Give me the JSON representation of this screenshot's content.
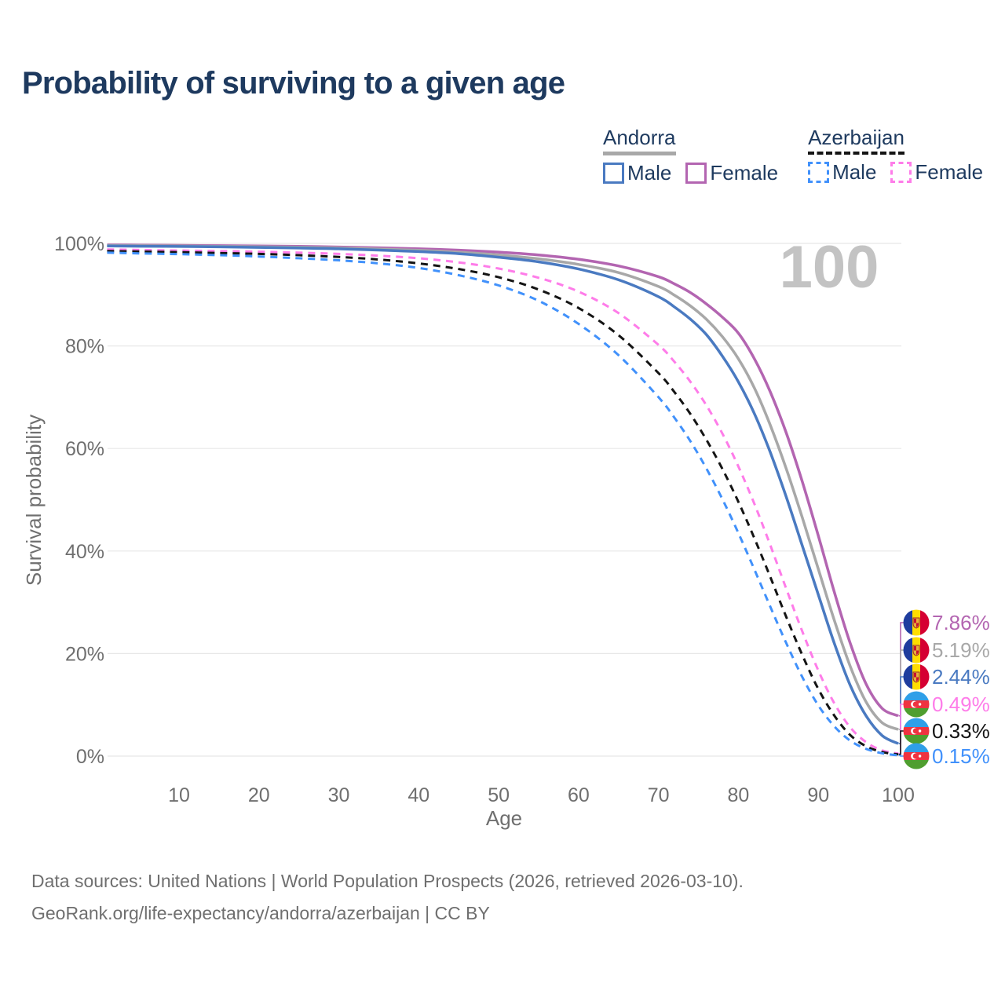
{
  "title": "Probability of surviving to a given age",
  "watermark_age": "100",
  "legend": {
    "groups": [
      {
        "country": "Andorra",
        "line_style": "solid",
        "line_color": "#a8a8a8",
        "items": [
          {
            "label": "Male",
            "color": "#4a7ac1",
            "dashed": false
          },
          {
            "label": "Female",
            "color": "#b365b1",
            "dashed": false
          }
        ]
      },
      {
        "country": "Azerbaijan",
        "line_style": "dashed",
        "line_color": "#141414",
        "items": [
          {
            "label": "Male",
            "color": "#4191fb",
            "dashed": true
          },
          {
            "label": "Female",
            "color": "#fe7ce9",
            "dashed": true
          }
        ]
      }
    ]
  },
  "axes": {
    "x_title": "Age",
    "y_title": "Survival probability",
    "x_ticks": [
      "10",
      "20",
      "30",
      "40",
      "50",
      "60",
      "70",
      "80",
      "90",
      "100"
    ],
    "x_tick_values": [
      10,
      20,
      30,
      40,
      50,
      60,
      70,
      80,
      90,
      100
    ],
    "y_ticks": [
      "100%",
      "80%",
      "60%",
      "40%",
      "20%",
      "0%"
    ],
    "y_tick_values": [
      100,
      80,
      60,
      40,
      20,
      0
    ]
  },
  "chart_data": {
    "type": "line",
    "title": "Probability of surviving to a given age",
    "xlabel": "Age",
    "ylabel": "Survival probability",
    "xlim": [
      1,
      100
    ],
    "ylim": [
      0,
      100
    ],
    "grid": "horizontal",
    "legend_position": "top-right",
    "hover_age": 100,
    "x": [
      1,
      5,
      10,
      15,
      20,
      25,
      30,
      35,
      40,
      45,
      50,
      55,
      60,
      65,
      70,
      72,
      74,
      76,
      78,
      80,
      82,
      84,
      86,
      88,
      90,
      92,
      94,
      96,
      98,
      100
    ],
    "series": [
      {
        "id": "andorra-female",
        "name": "Andorra Female",
        "country": "Andorra",
        "sex": "Female",
        "color": "#b365b1",
        "dashed": false,
        "flag": "andorra",
        "end_label": "7.86%",
        "end_value": 7.86,
        "values": [
          99.7,
          99.66,
          99.62,
          99.56,
          99.5,
          99.42,
          99.3,
          99.14,
          98.95,
          98.68,
          98.3,
          97.75,
          96.9,
          95.6,
          93.5,
          92.1,
          90.4,
          88.2,
          85.6,
          82.5,
          77.5,
          71.0,
          63.0,
          53.5,
          43.0,
          32.0,
          22.0,
          14.0,
          9.3,
          7.86
        ]
      },
      {
        "id": "andorra-both",
        "name": "Andorra",
        "country": "Andorra",
        "sex": "Both",
        "color": "#a8a8a8",
        "dashed": false,
        "flag": "andorra",
        "end_label": "5.19%",
        "end_value": 5.19,
        "values": [
          99.6,
          99.56,
          99.5,
          99.44,
          99.36,
          99.26,
          99.12,
          98.92,
          98.65,
          98.28,
          97.75,
          97.0,
          95.9,
          94.3,
          91.6,
          89.9,
          87.8,
          85.2,
          81.8,
          77.5,
          71.8,
          64.5,
          56.0,
          46.5,
          36.5,
          26.5,
          17.5,
          10.5,
          6.5,
          5.19
        ]
      },
      {
        "id": "andorra-male",
        "name": "Andorra Male",
        "country": "Andorra",
        "sex": "Male",
        "color": "#4a7ac1",
        "dashed": false,
        "flag": "andorra",
        "end_label": "2.44%",
        "end_value": 2.44,
        "values": [
          99.5,
          99.45,
          99.4,
          99.32,
          99.22,
          99.1,
          98.95,
          98.7,
          98.4,
          98.0,
          97.3,
          96.4,
          95.0,
          92.9,
          89.6,
          87.6,
          85.2,
          82.2,
          78.0,
          73.0,
          66.8,
          59.2,
          50.5,
          41.0,
          31.5,
          22.0,
          13.8,
          7.8,
          4.0,
          2.44
        ]
      },
      {
        "id": "azerbaijan-female",
        "name": "Azerbaijan Female",
        "country": "Azerbaijan",
        "sex": "Female",
        "color": "#fe7ce9",
        "dashed": true,
        "flag": "azerbaijan",
        "end_label": "0.49%",
        "end_value": 0.49,
        "values": [
          98.8,
          98.72,
          98.6,
          98.5,
          98.38,
          98.2,
          97.95,
          97.6,
          97.1,
          96.3,
          95.1,
          93.3,
          90.6,
          86.4,
          80.2,
          76.9,
          73.0,
          68.4,
          62.9,
          56.5,
          49.2,
          41.1,
          32.6,
          24.3,
          16.7,
          10.3,
          5.6,
          2.7,
          1.1,
          0.49
        ]
      },
      {
        "id": "azerbaijan-both",
        "name": "Azerbaijan",
        "country": "Azerbaijan",
        "sex": "Both",
        "color": "#141414",
        "dashed": true,
        "flag": "azerbaijan",
        "end_label": "0.33%",
        "end_value": 0.33,
        "values": [
          98.5,
          98.4,
          98.28,
          98.12,
          97.95,
          97.7,
          97.35,
          96.85,
          96.1,
          95.0,
          93.4,
          91.0,
          87.4,
          82.1,
          74.7,
          71.0,
          66.7,
          61.7,
          56.0,
          49.6,
          42.5,
          34.9,
          27.1,
          19.7,
          13.1,
          7.9,
          4.1,
          1.9,
          0.8,
          0.33
        ]
      },
      {
        "id": "azerbaijan-male",
        "name": "Azerbaijan Male",
        "country": "Azerbaijan",
        "sex": "Male",
        "color": "#4191fb",
        "dashed": true,
        "flag": "azerbaijan",
        "end_label": "0.15%",
        "end_value": 0.15,
        "values": [
          98.2,
          98.05,
          97.9,
          97.7,
          97.45,
          97.1,
          96.7,
          96.1,
          95.2,
          93.8,
          91.8,
          88.8,
          84.3,
          78.2,
          70.0,
          66.0,
          61.4,
          56.1,
          50.1,
          43.5,
          36.4,
          29.1,
          22.0,
          15.4,
          9.9,
          5.8,
          3.0,
          1.4,
          0.55,
          0.15
        ]
      }
    ]
  },
  "footer": {
    "line1": "Data sources: United Nations | World Population Prospects (2026, retrieved 2026-03-10).",
    "line2": "GeoRank.org/life-expectancy/andorra/azerbaijan | CC BY"
  }
}
